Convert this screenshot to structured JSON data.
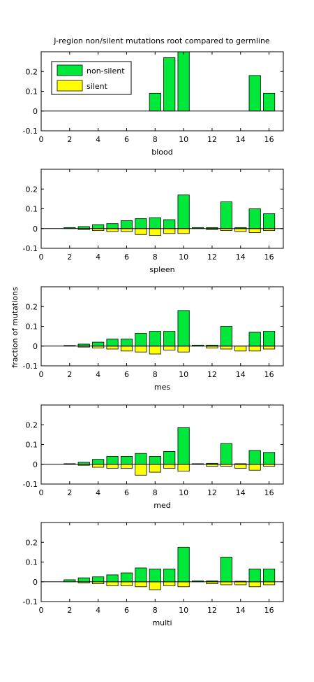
{
  "figure": {
    "title": "J-region non/silent mutations root compared to germline",
    "ylabel": "fraction of mutations"
  },
  "legend": {
    "entries": [
      {
        "label": "non-silent",
        "color": "#00e83a"
      },
      {
        "label": "silent",
        "color": "#ffff00"
      }
    ]
  },
  "colors": {
    "nonsilent": "#00e83a",
    "silent": "#ffff00"
  },
  "axis": {
    "xlim": [
      0,
      17
    ],
    "ylim": [
      -0.1,
      0.3
    ],
    "xticks": [
      0,
      2,
      4,
      6,
      8,
      10,
      12,
      14,
      16
    ],
    "yticks": [
      -0.1,
      0,
      0.1,
      0.2
    ],
    "xtick_labels": [
      "0",
      "2",
      "4",
      "6",
      "8",
      "10",
      "12",
      "14",
      "16"
    ],
    "ytick_labels": [
      "-0.1",
      "0",
      "0.1",
      "0.2"
    ]
  },
  "chart_data": [
    {
      "type": "bar",
      "xlabel": "blood",
      "x": [
        2,
        3,
        4,
        5,
        6,
        7,
        8,
        9,
        10,
        11,
        12,
        13,
        14,
        15,
        16
      ],
      "series": [
        {
          "name": "non-silent",
          "values": [
            0,
            0,
            0,
            0,
            0,
            0,
            0.09,
            0.27,
            0.3,
            0,
            0,
            0,
            0,
            0.18,
            0.09
          ]
        },
        {
          "name": "silent",
          "values": [
            0,
            0,
            0,
            0,
            0,
            0,
            0,
            0,
            0,
            0,
            0,
            0,
            0,
            0,
            0
          ]
        }
      ],
      "ylim": [
        -0.1,
        0.3
      ],
      "legend": "top-left"
    },
    {
      "type": "bar",
      "xlabel": "spleen",
      "x": [
        2,
        3,
        4,
        5,
        6,
        7,
        8,
        9,
        10,
        11,
        12,
        13,
        14,
        15,
        16
      ],
      "series": [
        {
          "name": "non-silent",
          "values": [
            0.005,
            0.01,
            0.02,
            0.025,
            0.04,
            0.05,
            0.055,
            0.045,
            0.17,
            0.005,
            0.005,
            0.135,
            0.005,
            0.1,
            0.075
          ]
        },
        {
          "name": "silent",
          "values": [
            0,
            -0.005,
            -0.01,
            -0.015,
            -0.015,
            -0.03,
            -0.035,
            -0.025,
            -0.025,
            0,
            -0.005,
            -0.01,
            -0.015,
            -0.02,
            -0.01
          ]
        }
      ],
      "ylim": [
        -0.1,
        0.3
      ]
    },
    {
      "type": "bar",
      "xlabel": "mes",
      "x": [
        2,
        3,
        4,
        5,
        6,
        7,
        8,
        9,
        10,
        11,
        12,
        13,
        14,
        15,
        16
      ],
      "series": [
        {
          "name": "non-silent",
          "values": [
            0.003,
            0.01,
            0.02,
            0.035,
            0.035,
            0.065,
            0.075,
            0.075,
            0.18,
            0.005,
            0.005,
            0.1,
            0,
            0.07,
            0.075
          ]
        },
        {
          "name": "silent",
          "values": [
            0,
            -0.005,
            -0.01,
            -0.015,
            -0.025,
            -0.03,
            -0.04,
            -0.02,
            -0.03,
            0,
            -0.01,
            -0.015,
            -0.025,
            -0.025,
            -0.015
          ]
        }
      ],
      "ylim": [
        -0.1,
        0.3
      ]
    },
    {
      "type": "bar",
      "xlabel": "med",
      "x": [
        2,
        3,
        4,
        5,
        6,
        7,
        8,
        9,
        10,
        11,
        12,
        13,
        14,
        15,
        16
      ],
      "series": [
        {
          "name": "non-silent",
          "values": [
            0.003,
            0.01,
            0.025,
            0.04,
            0.04,
            0.055,
            0.04,
            0.065,
            0.185,
            0.003,
            0.005,
            0.105,
            0.003,
            0.07,
            0.06
          ]
        },
        {
          "name": "silent",
          "values": [
            0,
            -0.005,
            -0.015,
            -0.02,
            -0.02,
            -0.055,
            -0.04,
            -0.02,
            -0.035,
            0,
            -0.01,
            -0.01,
            -0.02,
            -0.03,
            -0.01
          ]
        }
      ],
      "ylim": [
        -0.1,
        0.3
      ]
    },
    {
      "type": "bar",
      "xlabel": "multi",
      "x": [
        2,
        3,
        4,
        5,
        6,
        7,
        8,
        9,
        10,
        11,
        12,
        13,
        14,
        15,
        16
      ],
      "series": [
        {
          "name": "non-silent",
          "values": [
            0.01,
            0.02,
            0.025,
            0.035,
            0.045,
            0.07,
            0.065,
            0.065,
            0.175,
            0.005,
            0.005,
            0.125,
            0.003,
            0.065,
            0.065
          ]
        },
        {
          "name": "silent",
          "values": [
            0,
            -0.005,
            -0.01,
            -0.02,
            -0.02,
            -0.025,
            -0.04,
            -0.02,
            -0.025,
            0,
            -0.01,
            -0.015,
            -0.015,
            -0.025,
            -0.015
          ]
        }
      ],
      "ylim": [
        -0.1,
        0.3
      ]
    }
  ]
}
